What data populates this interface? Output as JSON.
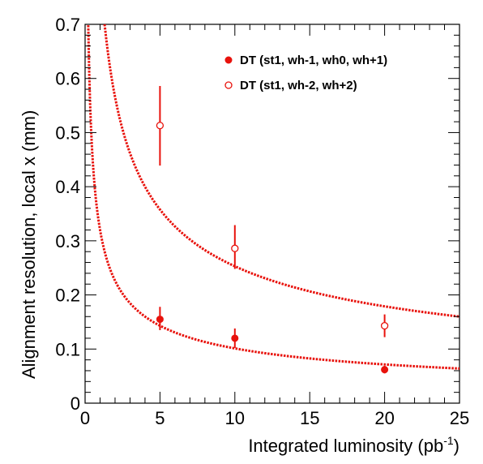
{
  "chart_data": {
    "type": "scatter",
    "xlabel": "Integrated luminosity (pb",
    "xlabel_sup": "-1",
    "xlabel_tail": ")",
    "ylabel": "Alignment resolution, local x (mm)",
    "xlim": [
      0,
      25
    ],
    "ylim": [
      0,
      0.7
    ],
    "x_ticks": [
      "0",
      "5",
      "10",
      "15",
      "20",
      "25"
    ],
    "y_ticks": [
      "0",
      "0.1",
      "0.2",
      "0.3",
      "0.4",
      "0.5",
      "0.6",
      "0.7"
    ],
    "grid": false,
    "legend_position": "top-right",
    "color": "#e8120c",
    "series": [
      {
        "name": "DT (st1, wh-1, wh0, wh+1)",
        "marker": "filled-circle",
        "x": [
          5,
          10,
          20
        ],
        "y": [
          0.155,
          0.12,
          0.062
        ],
        "err_low": [
          0.02,
          0.018,
          0.007
        ],
        "err_high": [
          0.023,
          0.018,
          0.007
        ]
      },
      {
        "name": "DT (st1, wh-2, wh+2)",
        "marker": "open-circle",
        "x": [
          5,
          10,
          20
        ],
        "y": [
          0.513,
          0.286,
          0.143
        ],
        "err_low": [
          0.074,
          0.038,
          0.021
        ],
        "err_high": [
          0.073,
          0.043,
          0.021
        ]
      }
    ],
    "fit_curves": [
      {
        "form": "a/sqrt(x)",
        "a": 0.32,
        "x_range": [
          0.21,
          25
        ],
        "style": "dotted"
      },
      {
        "form": "a/sqrt(x)",
        "a": 0.8,
        "x_range": [
          1.3,
          25
        ],
        "style": "dotted"
      }
    ]
  }
}
